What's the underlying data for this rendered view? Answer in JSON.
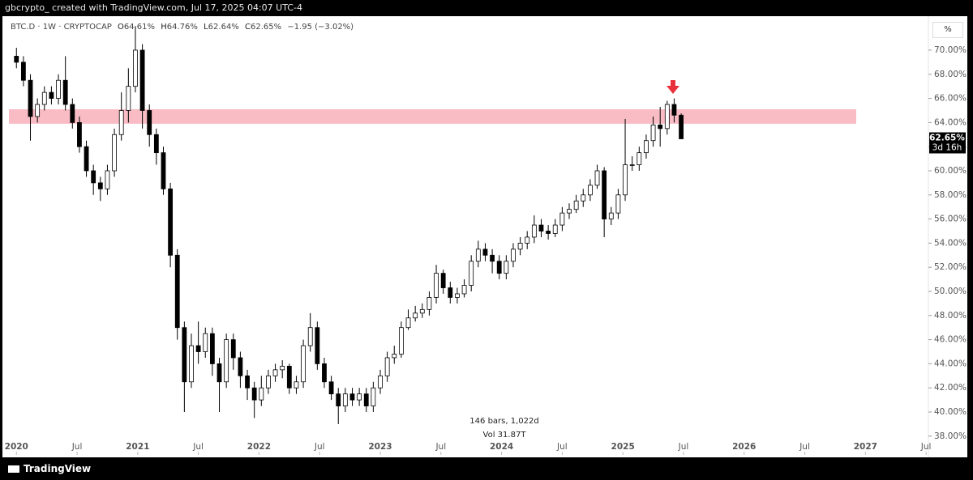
{
  "header": {
    "caption": "gbcrypto_ created with TradingView.com, Jul 17, 2025 04:07 UTC-4",
    "brand": "TradingView",
    "scale_button": "%"
  },
  "chart_data": {
    "type": "candlestick",
    "symbol": "BTC.D · 1W · CRYPTOCAP",
    "legend": {
      "o_label": "O",
      "o": "64.61%",
      "h_label": "H",
      "h": "64.76%",
      "l_label": "L",
      "l": "62.64%",
      "c_label": "C",
      "c": "62.65%",
      "change": "−1.95 (−3.02%)"
    },
    "x": [
      0,
      3,
      6,
      9,
      12,
      15,
      18,
      21,
      24,
      27,
      30,
      33,
      36,
      39,
      42,
      45,
      48,
      51,
      54,
      57,
      60,
      63,
      66,
      69,
      72,
      75,
      78,
      81,
      84,
      87,
      90,
      93,
      96,
      99,
      102,
      105,
      108,
      111,
      114,
      117,
      120,
      123,
      126,
      129,
      132,
      135,
      138,
      141,
      144,
      147,
      150,
      153,
      156,
      159,
      162,
      165,
      168,
      171,
      174,
      177,
      180,
      183,
      186,
      189,
      192,
      195,
      198,
      201,
      204,
      207,
      210,
      213,
      216,
      219,
      222,
      225,
      228,
      231,
      234,
      237,
      240,
      243,
      246,
      249,
      252,
      255,
      258,
      261,
      264,
      267,
      270,
      273,
      276,
      279,
      282,
      285
    ],
    "open": [
      69.5,
      69.0,
      67.5,
      64.5,
      65.5,
      66.5,
      66.0,
      67.5,
      65.5,
      64.0,
      62.0,
      60.0,
      59.0,
      58.5,
      60.0,
      63.0,
      65.0,
      67.0,
      70.0,
      65.0,
      63.0,
      61.5,
      58.5,
      53.0,
      47.0,
      42.5,
      45.5,
      45.0,
      46.5,
      44.0,
      42.5,
      46.0,
      44.5,
      43.0,
      42.0,
      41.0,
      42.0,
      43.0,
      43.5,
      43.8,
      42.0,
      42.5,
      45.5,
      47.0,
      44.0,
      42.5,
      41.5,
      40.5,
      41.5,
      41.0,
      41.5,
      40.5,
      42.0,
      43.0,
      44.5,
      44.8,
      47.0,
      47.8,
      48.2,
      48.5,
      49.5,
      51.5,
      50.3,
      49.5,
      49.8,
      50.5,
      52.5,
      53.5,
      53.0,
      52.5,
      51.5,
      52.5,
      53.5,
      54.0,
      54.5,
      55.5,
      55.0,
      54.8,
      55.5,
      56.5,
      56.8,
      57.5,
      58.0,
      58.8,
      60.0,
      56.0,
      56.5,
      58.0,
      60.5,
      60.5,
      61.5,
      62.5,
      63.8,
      63.5,
      65.5,
      64.61
    ],
    "high": [
      70.2,
      69.5,
      68.0,
      66.0,
      67.0,
      67.0,
      68.0,
      69.5,
      66.0,
      64.5,
      62.5,
      60.5,
      59.5,
      60.5,
      63.5,
      66.5,
      68.5,
      72.0,
      70.5,
      65.5,
      63.5,
      62.0,
      59.0,
      53.5,
      47.5,
      46.5,
      47.5,
      47.0,
      47.0,
      44.5,
      46.5,
      46.5,
      45.0,
      43.5,
      42.5,
      43.0,
      43.5,
      44.0,
      44.3,
      44.0,
      43.0,
      46.0,
      48.2,
      47.5,
      44.5,
      43.0,
      42.0,
      42.0,
      42.0,
      42.0,
      42.0,
      42.5,
      43.5,
      45.0,
      45.5,
      47.5,
      48.5,
      48.8,
      49.0,
      50.0,
      52.2,
      51.8,
      50.8,
      50.3,
      51.0,
      53.0,
      54.2,
      54.0,
      53.5,
      53.0,
      53.0,
      54.0,
      54.5,
      55.0,
      56.3,
      56.0,
      55.5,
      56.0,
      57.0,
      57.3,
      58.0,
      58.5,
      59.3,
      60.5,
      60.3,
      57.0,
      58.5,
      64.3,
      61.2,
      62.0,
      63.0,
      64.5,
      65.3,
      65.8,
      66.0,
      64.76
    ],
    "low": [
      68.5,
      67.0,
      62.5,
      64.0,
      65.0,
      65.5,
      65.5,
      65.0,
      63.5,
      61.5,
      59.5,
      58.0,
      57.5,
      58.0,
      59.5,
      62.5,
      64.0,
      66.5,
      63.5,
      62.0,
      60.5,
      58.0,
      52.0,
      46.0,
      40.0,
      42.0,
      44.0,
      44.5,
      43.0,
      40.0,
      42.0,
      43.5,
      42.0,
      41.0,
      39.5,
      40.5,
      41.5,
      42.5,
      42.8,
      41.5,
      41.5,
      42.0,
      45.0,
      43.5,
      42.0,
      41.0,
      39.0,
      40.0,
      40.5,
      40.5,
      40.0,
      40.0,
      41.5,
      42.5,
      44.0,
      44.5,
      46.8,
      47.5,
      47.8,
      48.0,
      49.0,
      49.8,
      49.0,
      49.0,
      49.5,
      50.0,
      52.0,
      52.5,
      51.5,
      51.0,
      51.0,
      52.0,
      53.0,
      53.5,
      54.0,
      54.5,
      54.3,
      54.5,
      55.0,
      56.0,
      56.5,
      57.0,
      57.5,
      58.5,
      54.5,
      55.5,
      56.0,
      57.5,
      60.0,
      60.0,
      61.0,
      62.0,
      62.0,
      63.0,
      64.0,
      62.64
    ],
    "close": [
      69.0,
      67.5,
      64.5,
      65.5,
      66.5,
      66.0,
      67.5,
      65.5,
      64.0,
      62.0,
      60.0,
      59.0,
      58.5,
      60.0,
      63.0,
      65.0,
      67.0,
      70.0,
      65.0,
      63.0,
      61.5,
      58.5,
      53.0,
      47.0,
      42.5,
      45.5,
      45.0,
      46.5,
      44.0,
      42.5,
      46.0,
      44.5,
      43.0,
      42.0,
      41.0,
      42.0,
      43.0,
      43.5,
      43.8,
      42.0,
      42.5,
      45.5,
      47.0,
      44.0,
      42.5,
      41.5,
      40.5,
      41.5,
      41.0,
      41.5,
      40.5,
      42.0,
      43.0,
      44.5,
      44.8,
      47.0,
      47.8,
      48.2,
      48.5,
      49.5,
      51.5,
      50.3,
      49.5,
      49.8,
      50.5,
      52.5,
      53.5,
      53.0,
      52.5,
      51.5,
      52.5,
      53.5,
      54.0,
      54.5,
      55.5,
      55.0,
      54.8,
      55.5,
      56.5,
      56.8,
      57.5,
      58.0,
      58.8,
      60.0,
      56.0,
      56.5,
      58.0,
      60.5,
      60.5,
      61.5,
      62.5,
      63.8,
      63.5,
      65.5,
      64.61,
      62.65
    ],
    "up_color": "#ffffff",
    "down_color": "#000000",
    "wick_color": "#000000",
    "xlim": [
      -6,
      391
    ],
    "xticks": [
      {
        "value": 0,
        "label": "2020"
      },
      {
        "value": 26,
        "label": "Jul"
      },
      {
        "value": 52,
        "label": "2021"
      },
      {
        "value": 78,
        "label": "Jul"
      },
      {
        "value": 104,
        "label": "2022"
      },
      {
        "value": 130,
        "label": "Jul"
      },
      {
        "value": 156,
        "label": "2023"
      },
      {
        "value": 182,
        "label": "Jul"
      },
      {
        "value": 208,
        "label": "2024"
      },
      {
        "value": 234,
        "label": "Jul"
      },
      {
        "value": 260,
        "label": "2025"
      },
      {
        "value": 286,
        "label": "Jul"
      },
      {
        "value": 312,
        "label": "2026"
      },
      {
        "value": 338,
        "label": "Jul"
      },
      {
        "value": 364,
        "label": "2027"
      },
      {
        "value": 390,
        "label": "Jul"
      }
    ],
    "ylim": [
      37.92,
      72.28
    ],
    "yticks": [
      {
        "value": 38,
        "label": "38.00%"
      },
      {
        "value": 40,
        "label": "40.00%"
      },
      {
        "value": 42,
        "label": "42.00%"
      },
      {
        "value": 44,
        "label": "44.00%"
      },
      {
        "value": 46,
        "label": "46.00%"
      },
      {
        "value": 48,
        "label": "48.00%"
      },
      {
        "value": 50,
        "label": "50.00%"
      },
      {
        "value": 52,
        "label": "52.00%"
      },
      {
        "value": 54,
        "label": "54.00%"
      },
      {
        "value": 56,
        "label": "56.00%"
      },
      {
        "value": 58,
        "label": "58.00%"
      },
      {
        "value": 60,
        "label": "60.00%"
      },
      {
        "value": 62,
        "label": "62.00%"
      },
      {
        "value": 64,
        "label": "64.00%"
      },
      {
        "value": 66,
        "label": "66.00%"
      },
      {
        "value": 68,
        "label": "68.00%"
      },
      {
        "value": 70,
        "label": "70.00%"
      }
    ],
    "zone": {
      "low": 63.9,
      "high": 65.1,
      "color": "#f9bcc4"
    },
    "price_label": "62.65%",
    "countdown": "3d 16h",
    "measure": [
      "146 bars, 1,022d",
      "Vol 31.87T"
    ]
  }
}
